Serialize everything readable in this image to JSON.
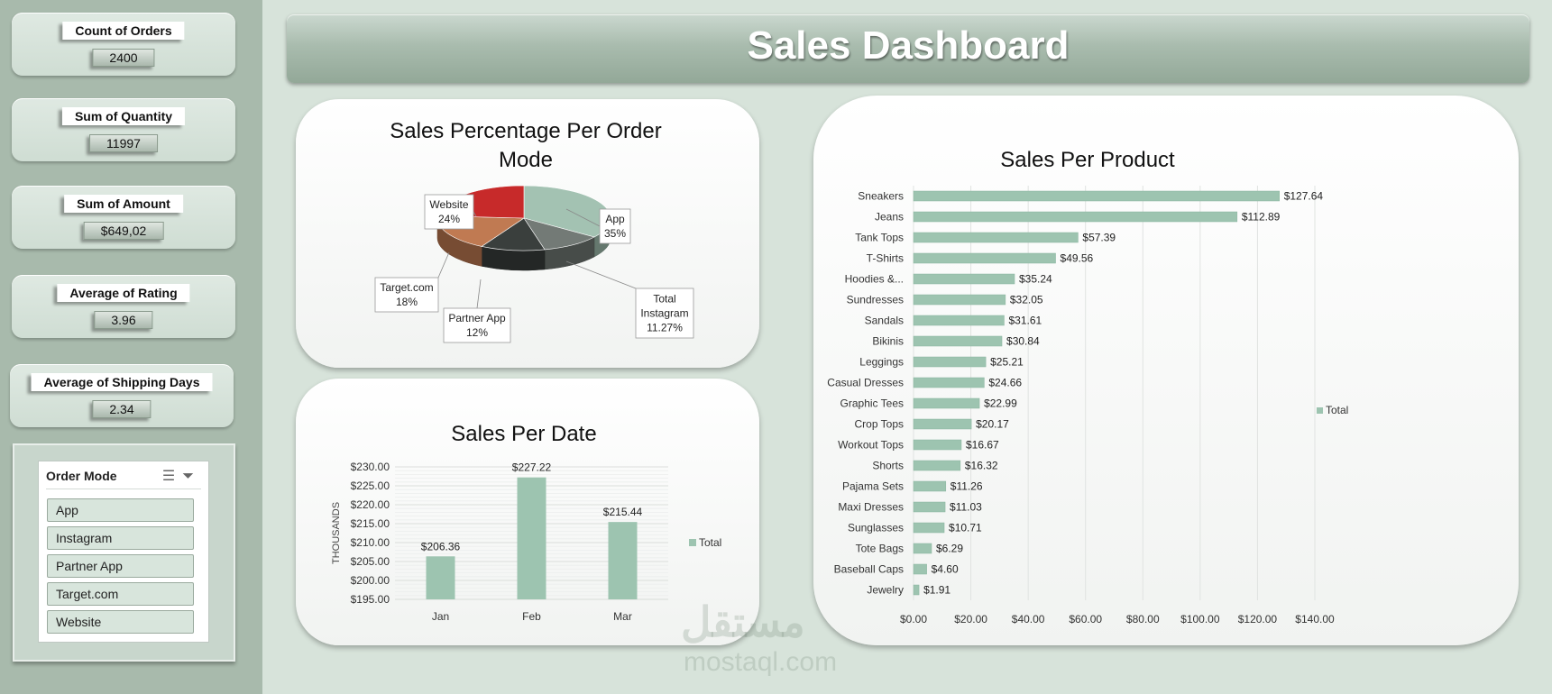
{
  "kpis": [
    {
      "label": "Count of Orders",
      "value": "2400"
    },
    {
      "label": "Sum of Quantity",
      "value": "11997"
    },
    {
      "label": "Sum of Amount",
      "value": "$649,02"
    },
    {
      "label": "Average of Rating",
      "value": "3.96"
    },
    {
      "label": "Average of Shipping Days",
      "value": "2.34"
    }
  ],
  "slicer": {
    "title": "Order Mode",
    "items": [
      "App",
      "Instagram",
      "Partner App",
      "Target.com",
      "Website"
    ]
  },
  "dashboard_title": "Sales Dashboard",
  "colors": {
    "accent": "#9dc4b0",
    "sidebar": "#a8baac",
    "background": "#d7e3da"
  },
  "chart_data": [
    {
      "type": "pie",
      "title": "Sales Percentage Per Order Mode",
      "categories": [
        "App",
        "Instagram",
        "Partner App",
        "Target.com",
        "Website"
      ],
      "values": [
        35,
        11.27,
        12,
        18,
        24
      ],
      "labels": [
        "35%",
        "11.27%",
        "12%",
        "18%",
        "24%"
      ],
      "series_label": "Total",
      "colors": [
        "#a3c2b2",
        "#737a76",
        "#3a3f3d",
        "#c07a52",
        "#c72a2a"
      ]
    },
    {
      "type": "bar",
      "title": "Sales Per Date",
      "categories": [
        "Jan",
        "Feb",
        "Mar"
      ],
      "values": [
        206.36,
        227.22,
        215.44
      ],
      "value_labels": [
        "$206.36",
        "$227.22",
        "$215.44"
      ],
      "ylabel": "THOUSANDS",
      "yticks": [
        "$195.00",
        "$200.00",
        "$205.00",
        "$210.00",
        "$215.00",
        "$220.00",
        "$225.00",
        "$230.00"
      ],
      "ylim": [
        195,
        230
      ],
      "legend": "Total",
      "grid": true
    },
    {
      "type": "bar",
      "orientation": "horizontal",
      "title": "Sales Per Product",
      "categories": [
        "Sneakers",
        "Jeans",
        "Tank Tops",
        "T-Shirts",
        "Hoodies &...",
        "Sundresses",
        "Sandals",
        "Bikinis",
        "Leggings",
        "Casual Dresses",
        "Graphic Tees",
        "Crop Tops",
        "Workout Tops",
        "Shorts",
        "Pajama Sets",
        "Maxi Dresses",
        "Sunglasses",
        "Tote Bags",
        "Baseball Caps",
        "Jewelry"
      ],
      "values": [
        127.64,
        112.89,
        57.39,
        49.56,
        35.24,
        32.05,
        31.61,
        30.84,
        25.21,
        24.66,
        22.99,
        20.17,
        16.67,
        16.32,
        11.26,
        11.03,
        10.71,
        6.29,
        4.6,
        1.91
      ],
      "value_labels": [
        "$127.64",
        "$112.89",
        "$57.39",
        "$49.56",
        "$35.24",
        "$32.05",
        "$31.61",
        "$30.84",
        "$25.21",
        "$24.66",
        "$22.99",
        "$20.17",
        "$16.67",
        "$16.32",
        "$11.26",
        "$11.03",
        "$10.71",
        "$6.29",
        "$4.60",
        "$1.91"
      ],
      "xticks": [
        "$0.00",
        "$20.00",
        "$40.00",
        "$60.00",
        "$80.00",
        "$100.00",
        "$120.00",
        "$140.00"
      ],
      "xlim": [
        0,
        140
      ],
      "legend": "Total",
      "grid": true
    }
  ],
  "watermark": {
    "arabic": "مستقل",
    "url": "mostaql.com"
  }
}
